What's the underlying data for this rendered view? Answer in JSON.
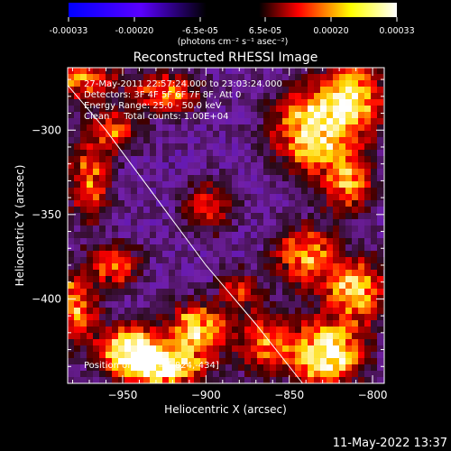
{
  "colorbar": {
    "ticks": [
      "-0.00033",
      "-0.00020",
      "-6.5e-05",
      "6.5e-05",
      "0.00020",
      "0.00033"
    ],
    "unit_label": "(photons cm⁻² s⁻¹ asec⁻²)",
    "colors": [
      "#0000ff",
      "#ff0000",
      "#ffff00",
      "#ffffff"
    ]
  },
  "chart_data": {
    "type": "heatmap",
    "title": "Reconstructed RHESSI Image",
    "xlabel": "Heliocentric X (arcsec)",
    "ylabel": "Heliocentric Y (arcsec)",
    "xlim": [
      -983,
      -793
    ],
    "ylim": [
      -450,
      -263
    ],
    "x_ticks": [
      -950,
      -900,
      -850,
      -800
    ],
    "x_tick_labels": [
      "−950",
      "−900",
      "−850",
      "−800"
    ],
    "y_ticks": [
      -300,
      -350,
      -400
    ],
    "y_tick_labels": [
      "−300",
      "−350",
      "−400"
    ],
    "annotations": [
      "27-May-2011 22:57:24.000 to 23:03:24.000",
      "Detectors: 3F 4F 5F 6F 7F 8F, Att 0",
      "Energy Range: 25.0 - 50.0 keV",
      "Clean     Total counts: 1.00E+04",
      "Position of Peak = [-824,-434]"
    ],
    "limb_curve": [
      [
        -992,
        -263
      ],
      [
        -960,
        -300
      ],
      [
        -930,
        -340
      ],
      [
        -900,
        -380
      ],
      [
        -870,
        -415
      ],
      [
        -842,
        -450
      ]
    ],
    "peak": [
      -824,
      -434
    ],
    "bright_regions": [
      {
        "x": -945,
        "y": -430,
        "sx": 12,
        "sy": 9,
        "a": 1.1
      },
      {
        "x": -925,
        "y": -440,
        "sx": 16,
        "sy": 8,
        "a": 1.0
      },
      {
        "x": -905,
        "y": -418,
        "sx": 12,
        "sy": 10,
        "a": 0.85
      },
      {
        "x": -980,
        "y": -405,
        "sx": 10,
        "sy": 14,
        "a": 0.7
      },
      {
        "x": -955,
        "y": -380,
        "sx": 10,
        "sy": 8,
        "a": 0.6
      },
      {
        "x": -970,
        "y": -330,
        "sx": 9,
        "sy": 16,
        "a": 0.55
      },
      {
        "x": -955,
        "y": -300,
        "sx": 10,
        "sy": 8,
        "a": 0.5
      },
      {
        "x": -975,
        "y": -270,
        "sx": 14,
        "sy": 8,
        "a": 0.6
      },
      {
        "x": -925,
        "y": -278,
        "sx": 14,
        "sy": 8,
        "a": 0.6
      },
      {
        "x": -898,
        "y": -345,
        "sx": 10,
        "sy": 10,
        "a": 0.45
      },
      {
        "x": -835,
        "y": -300,
        "sx": 16,
        "sy": 16,
        "a": 0.95
      },
      {
        "x": -812,
        "y": -280,
        "sx": 12,
        "sy": 14,
        "a": 0.8
      },
      {
        "x": -815,
        "y": -330,
        "sx": 10,
        "sy": 12,
        "a": 0.65
      },
      {
        "x": -840,
        "y": -375,
        "sx": 12,
        "sy": 12,
        "a": 0.7
      },
      {
        "x": -810,
        "y": -395,
        "sx": 12,
        "sy": 12,
        "a": 0.85
      },
      {
        "x": -828,
        "y": -432,
        "sx": 14,
        "sy": 12,
        "a": 1.15
      },
      {
        "x": -865,
        "y": -425,
        "sx": 10,
        "sy": 12,
        "a": 0.6
      },
      {
        "x": -880,
        "y": -395,
        "sx": 8,
        "sy": 8,
        "a": 0.45
      }
    ]
  },
  "timestamp": "11-May-2022 13:37"
}
